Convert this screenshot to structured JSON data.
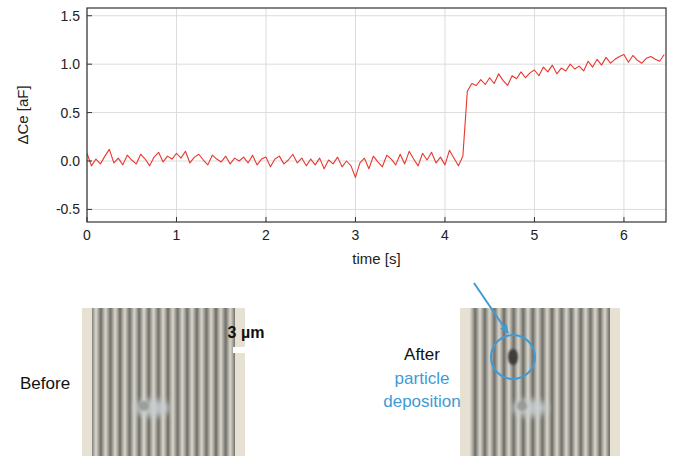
{
  "chart_data": {
    "type": "line",
    "x_label": "time [s]",
    "y_label": "ΔCe [aF]",
    "x": [
      0,
      0.05,
      0.1,
      0.15,
      0.2,
      0.25,
      0.3,
      0.35,
      0.4,
      0.45,
      0.5,
      0.55,
      0.6,
      0.65,
      0.7,
      0.75,
      0.8,
      0.85,
      0.9,
      0.95,
      1,
      1.05,
      1.1,
      1.15,
      1.2,
      1.25,
      1.3,
      1.35,
      1.4,
      1.45,
      1.5,
      1.55,
      1.6,
      1.65,
      1.7,
      1.75,
      1.8,
      1.85,
      1.9,
      1.95,
      2,
      2.05,
      2.1,
      2.15,
      2.2,
      2.25,
      2.3,
      2.35,
      2.4,
      2.45,
      2.5,
      2.55,
      2.6,
      2.65,
      2.7,
      2.75,
      2.8,
      2.85,
      2.9,
      2.95,
      3,
      3.05,
      3.1,
      3.15,
      3.2,
      3.25,
      3.3,
      3.35,
      3.4,
      3.45,
      3.5,
      3.55,
      3.6,
      3.65,
      3.7,
      3.75,
      3.8,
      3.85,
      3.9,
      3.95,
      4,
      4.05,
      4.1,
      4.15,
      4.2,
      4.25,
      4.3,
      4.35,
      4.4,
      4.45,
      4.5,
      4.55,
      4.6,
      4.65,
      4.7,
      4.75,
      4.8,
      4.85,
      4.9,
      4.95,
      5,
      5.05,
      5.1,
      5.15,
      5.2,
      5.25,
      5.3,
      5.35,
      5.4,
      5.45,
      5.5,
      5.55,
      5.6,
      5.65,
      5.7,
      5.75,
      5.8,
      5.85,
      5.9,
      5.95,
      6,
      6.05,
      6.1,
      6.15,
      6.2,
      6.25,
      6.3,
      6.35,
      6.4,
      6.45
    ],
    "values": [
      0.08,
      -0.05,
      0.02,
      -0.03,
      0.05,
      0.12,
      -0.02,
      0.03,
      -0.04,
      0.06,
      0.01,
      -0.03,
      0.07,
      0.02,
      -0.05,
      0.04,
      0.09,
      -0.01,
      0.05,
      0.02,
      0.08,
      0.03,
      0.1,
      -0.02,
      0.04,
      0.07,
      0.01,
      -0.04,
      0.06,
      0.02,
      -0.01,
      0.05,
      -0.03,
      0.03,
      0.0,
      0.04,
      -0.02,
      0.06,
      -0.04,
      0.02,
      0.04,
      -0.06,
      0.02,
      0.05,
      -0.03,
      0.01,
      0.07,
      -0.02,
      0.03,
      -0.05,
      0.02,
      -0.04,
      0.03,
      -0.08,
      0.01,
      -0.03,
      0.04,
      -0.06,
      0.0,
      -0.05,
      -0.17,
      -0.02,
      0.03,
      -0.08,
      0.05,
      -0.01,
      -0.06,
      0.06,
      0.02,
      -0.04,
      0.07,
      -0.03,
      0.1,
      0.02,
      -0.05,
      0.08,
      0.01,
      0.09,
      -0.02,
      0.04,
      -0.04,
      0.11,
      0.03,
      -0.05,
      0.05,
      0.72,
      0.8,
      0.78,
      0.84,
      0.79,
      0.86,
      0.8,
      0.9,
      0.83,
      0.78,
      0.88,
      0.85,
      0.92,
      0.86,
      0.91,
      0.94,
      0.88,
      0.97,
      0.92,
      0.99,
      0.9,
      0.96,
      0.93,
      1.0,
      0.95,
      0.98,
      0.93,
      1.03,
      0.97,
      1.05,
      0.99,
      1.07,
      1.01,
      1.05,
      1.08,
      1.1,
      1.02,
      1.09,
      1.04,
      1.01,
      1.06,
      1.08,
      1.05,
      1.03,
      1.1
    ],
    "color": "#e8372c",
    "xlim": [
      0,
      6.47
    ],
    "ylim": [
      -0.63,
      1.58
    ],
    "xticks": [
      0,
      1,
      2,
      3,
      4,
      5,
      6
    ],
    "yticks": [
      -0.5,
      {
        "value": 0,
        "label": "0.0"
      },
      0.5,
      {
        "value": 1,
        "label": "1.0"
      },
      1.5
    ],
    "grid": true,
    "annotations": [
      "Before",
      "3 µm",
      "After",
      "particle deposition"
    ]
  }
}
